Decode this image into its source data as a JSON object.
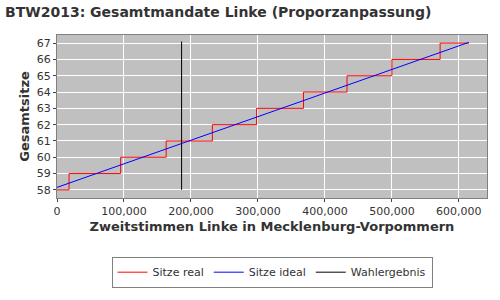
{
  "chart_data": {
    "type": "line",
    "title": "BTW2013: Gesamtmandate Linke (Proporzanpassung)",
    "x_label": "Zweitstimmen Linke in Mecklenburg-Vorpommern",
    "y_label": "Gesamtsitze",
    "xlim": [
      0,
      642000
    ],
    "ylim": [
      57.5,
      67.5
    ],
    "xticks": [
      0,
      {
        "value": 100000,
        "label": "100,000"
      },
      {
        "value": 200000,
        "label": "200,000"
      },
      {
        "value": 300000,
        "label": "300,000"
      },
      {
        "value": 400000,
        "label": "400,000"
      },
      {
        "value": 500000,
        "label": "500,000"
      },
      {
        "value": 600000,
        "label": "600,000"
      }
    ],
    "yticks": [
      58,
      59,
      60,
      61,
      62,
      63,
      64,
      65,
      66,
      67
    ],
    "grid": true,
    "legend": "bottom",
    "series": [
      {
        "name": "Sitze real",
        "color": "#ff0000",
        "type": "step",
        "x": [
          0,
          18000,
          95000,
          163000,
          232000,
          298000,
          368000,
          433000,
          500000,
          572000,
          615000
        ],
        "values": [
          58,
          59,
          60,
          61,
          62,
          63,
          64,
          65,
          66,
          67,
          67
        ]
      },
      {
        "name": "Sitze ideal",
        "color": "#0000ff",
        "type": "line",
        "x": [
          0,
          615000
        ],
        "values": [
          58.15,
          67.05
        ]
      },
      {
        "name": "Wahlergebnis",
        "color": "#000000",
        "type": "line",
        "x": [
          186000,
          186000
        ],
        "values": [
          58,
          67.1
        ]
      }
    ]
  }
}
